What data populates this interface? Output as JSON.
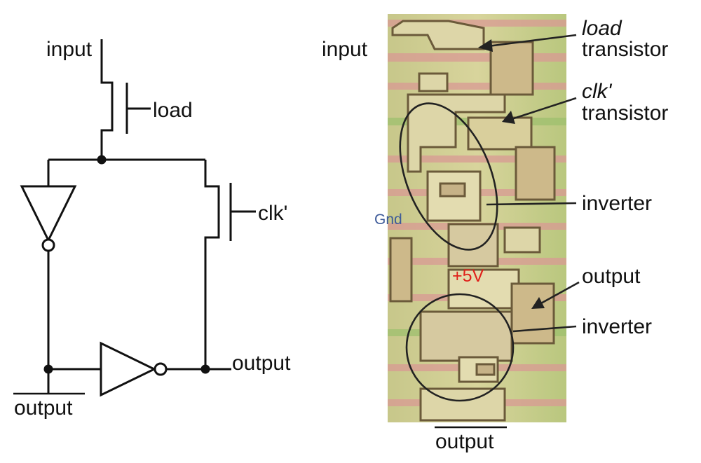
{
  "schematic": {
    "input_label": "input",
    "load_label": "load",
    "clk_label": "clk'",
    "output_label": "output",
    "output_bar_label": "output"
  },
  "die_photo": {
    "input_label": "input",
    "load_transistor": {
      "line1": "load",
      "line2": "transistor"
    },
    "clk_transistor": {
      "line1": "clk'",
      "line2": "transistor"
    },
    "inverter_upper": "inverter",
    "gnd_label": "Gnd",
    "vcc_label": "+5V",
    "output_label": "output",
    "inverter_lower": "inverter",
    "output_bar_label": "output"
  },
  "colors": {
    "gnd": "#3d5a99",
    "vcc": "#e0201a",
    "metal": "#ddd6a8",
    "stripe_pink": "#d99a94",
    "stripe_green": "#9ec06e"
  }
}
